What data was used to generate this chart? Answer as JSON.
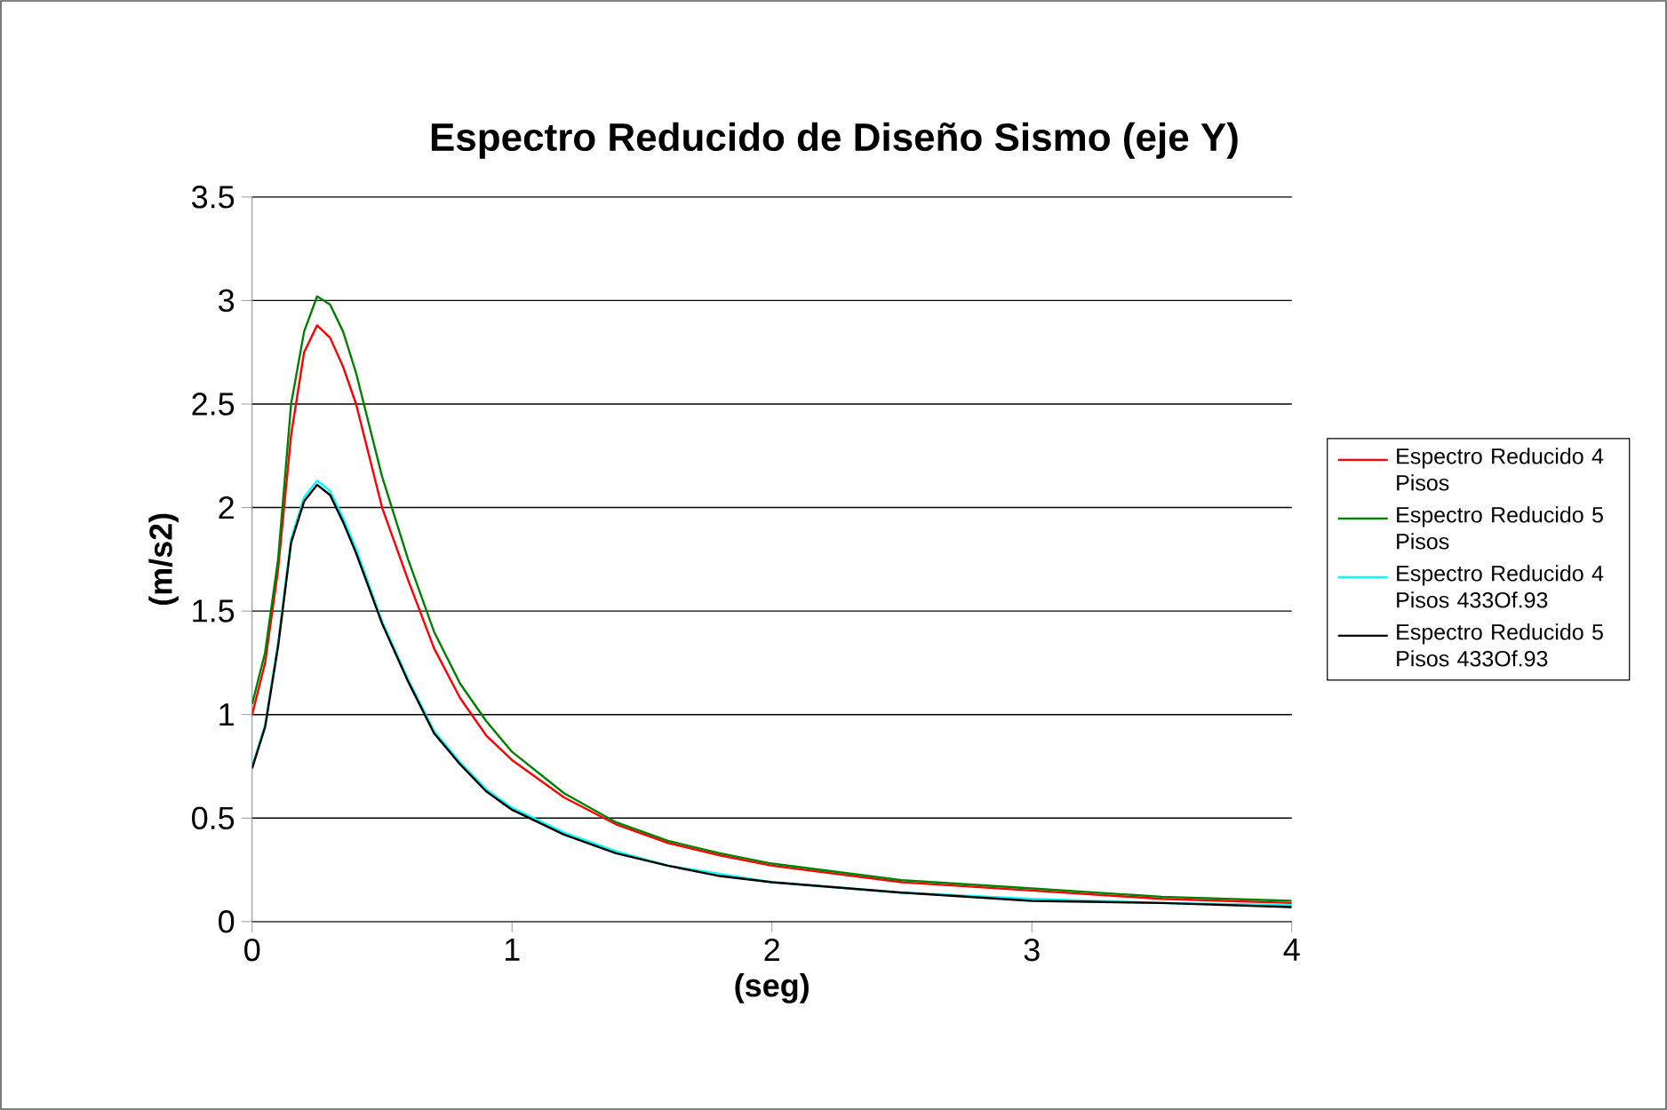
{
  "chart_data": {
    "type": "line",
    "title": "Espectro Reducido de Diseño Sismo (eje Y)",
    "xlabel": "(seg)",
    "ylabel": "(m/s2)",
    "x": [
      0,
      0.05,
      0.1,
      0.15,
      0.2,
      0.25,
      0.3,
      0.35,
      0.4,
      0.5,
      0.6,
      0.7,
      0.8,
      0.9,
      1.0,
      1.2,
      1.4,
      1.6,
      1.8,
      2.0,
      2.5,
      3.0,
      3.5,
      4.0
    ],
    "series": [
      {
        "name": "Espectro Reducido 4 Pisos",
        "color": "#ff0000",
        "values": [
          1.0,
          1.25,
          1.7,
          2.35,
          2.75,
          2.88,
          2.82,
          2.68,
          2.5,
          2.0,
          1.65,
          1.32,
          1.08,
          0.9,
          0.78,
          0.6,
          0.47,
          0.38,
          0.32,
          0.27,
          0.19,
          0.15,
          0.11,
          0.09
        ]
      },
      {
        "name": "Espectro Reducido 5 Pisos",
        "color": "#008000",
        "values": [
          1.05,
          1.3,
          1.75,
          2.5,
          2.85,
          3.02,
          2.98,
          2.85,
          2.65,
          2.15,
          1.75,
          1.4,
          1.15,
          0.97,
          0.82,
          0.62,
          0.48,
          0.39,
          0.33,
          0.28,
          0.2,
          0.16,
          0.12,
          0.1
        ]
      },
      {
        "name": "Espectro Reducido 4 Pisos 433Of.93",
        "color": "#00ffff",
        "values": [
          0.75,
          0.95,
          1.35,
          1.85,
          2.05,
          2.13,
          2.08,
          1.95,
          1.8,
          1.45,
          1.17,
          0.92,
          0.77,
          0.64,
          0.55,
          0.43,
          0.34,
          0.27,
          0.23,
          0.19,
          0.14,
          0.11,
          0.09,
          0.08
        ]
      },
      {
        "name": "Espectro Reducido 5 Pisos 433Of.93",
        "color": "#000000",
        "values": [
          0.74,
          0.94,
          1.33,
          1.83,
          2.03,
          2.11,
          2.06,
          1.93,
          1.78,
          1.44,
          1.16,
          0.91,
          0.76,
          0.63,
          0.54,
          0.42,
          0.33,
          0.27,
          0.22,
          0.19,
          0.14,
          0.1,
          0.09,
          0.07
        ]
      }
    ],
    "xlim": [
      0,
      4
    ],
    "xticks": [
      0,
      1,
      2,
      3,
      4
    ],
    "ylim": [
      0,
      3.5
    ],
    "yticks": [
      0,
      0.5,
      1,
      1.5,
      2,
      2.5,
      3,
      3.5
    ],
    "grid": "y",
    "legend": "right",
    "marker": "none",
    "line_style": "solid"
  }
}
